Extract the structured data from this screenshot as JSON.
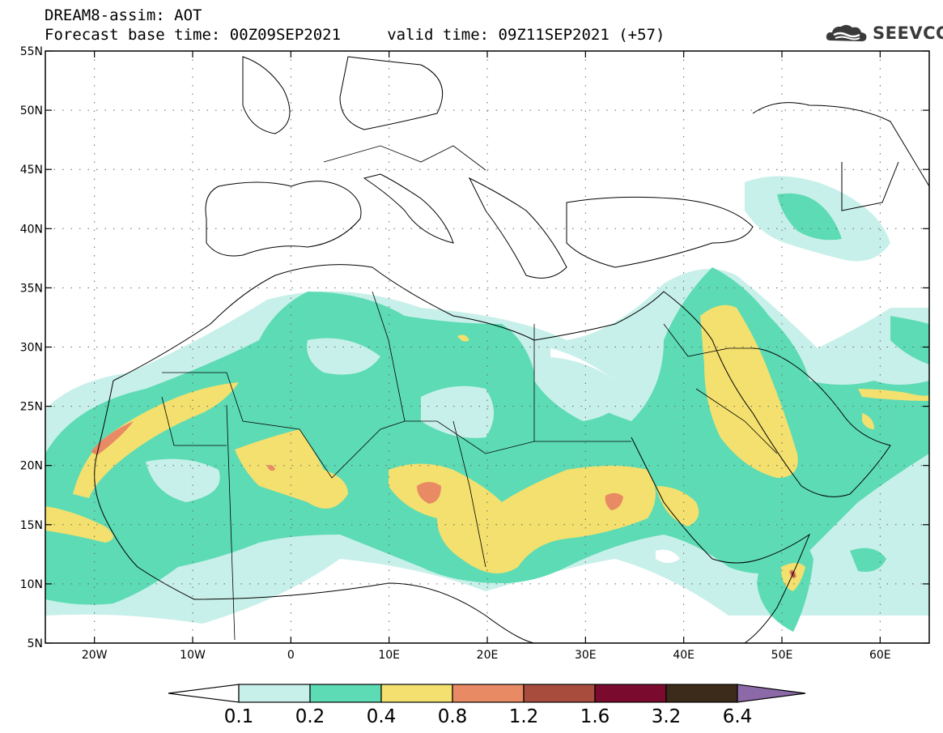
{
  "header": {
    "line1": "DREAM8-assim: AOT",
    "line2": "Forecast base time: 00Z09SEP2021     valid time: 09Z11SEP2021 (+57)"
  },
  "logo": {
    "text": "SEEVCCC",
    "icon": "cloud-logo-icon",
    "color": "#3a3a3a"
  },
  "map": {
    "lon_range": [
      -25,
      65
    ],
    "lat_range": [
      5,
      55
    ],
    "lon_ticks": [
      {
        "value": -20,
        "label": "20W"
      },
      {
        "value": -10,
        "label": "10W"
      },
      {
        "value": 0,
        "label": "0"
      },
      {
        "value": 10,
        "label": "10E"
      },
      {
        "value": 20,
        "label": "20E"
      },
      {
        "value": 30,
        "label": "30E"
      },
      {
        "value": 40,
        "label": "40E"
      },
      {
        "value": 50,
        "label": "50E"
      },
      {
        "value": 60,
        "label": "60E"
      }
    ],
    "lat_ticks": [
      {
        "value": 55,
        "label": "55N"
      },
      {
        "value": 50,
        "label": "50N"
      },
      {
        "value": 45,
        "label": "45N"
      },
      {
        "value": 40,
        "label": "40N"
      },
      {
        "value": 35,
        "label": "35N"
      },
      {
        "value": 30,
        "label": "30N"
      },
      {
        "value": 25,
        "label": "25N"
      },
      {
        "value": 20,
        "label": "20N"
      },
      {
        "value": 15,
        "label": "15N"
      },
      {
        "value": 10,
        "label": "10N"
      },
      {
        "value": 5,
        "label": "5N"
      }
    ]
  },
  "colorbar": {
    "labels": [
      "0.1",
      "0.2",
      "0.4",
      "0.8",
      "1.2",
      "1.6",
      "3.2",
      "6.4"
    ],
    "colors": [
      "#c8f0ea",
      "#5ddbb4",
      "#f3e06e",
      "#e88a64",
      "#a84c3e",
      "#7a0a2e",
      "#3c2a1a"
    ],
    "below_color": "#ffffff",
    "above_color": "#8c6aa8"
  }
}
